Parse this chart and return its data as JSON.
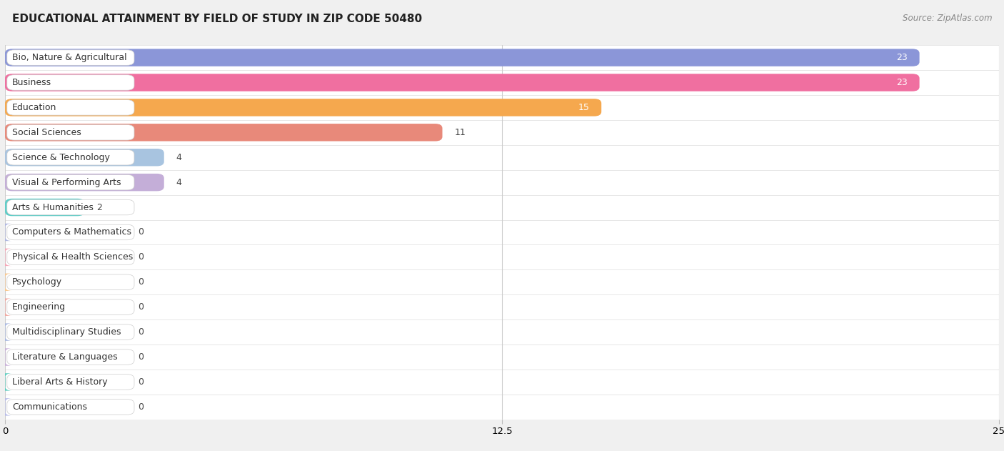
{
  "title": "EDUCATIONAL ATTAINMENT BY FIELD OF STUDY IN ZIP CODE 50480",
  "source": "Source: ZipAtlas.com",
  "categories": [
    "Bio, Nature & Agricultural",
    "Business",
    "Education",
    "Social Sciences",
    "Science & Technology",
    "Visual & Performing Arts",
    "Arts & Humanities",
    "Computers & Mathematics",
    "Physical & Health Sciences",
    "Psychology",
    "Engineering",
    "Multidisciplinary Studies",
    "Literature & Languages",
    "Liberal Arts & History",
    "Communications"
  ],
  "values": [
    23,
    23,
    15,
    11,
    4,
    4,
    2,
    0,
    0,
    0,
    0,
    0,
    0,
    0,
    0
  ],
  "bar_colors": [
    "#8b96d8",
    "#f06fa0",
    "#f5a84e",
    "#e8897a",
    "#a8c4e0",
    "#c4aed8",
    "#5ecec8",
    "#b0b8e0",
    "#f5a8b8",
    "#f8c890",
    "#f0a8a0",
    "#a8b8e0",
    "#c8b0d8",
    "#5ecec0",
    "#b8bce8"
  ],
  "xlim": [
    0,
    25
  ],
  "xticks": [
    0,
    12.5,
    25
  ],
  "background_color": "#f0f0f0",
  "row_bg_color": "#ffffff",
  "title_fontsize": 11,
  "source_fontsize": 8.5,
  "label_fontsize": 9,
  "value_fontsize": 9
}
